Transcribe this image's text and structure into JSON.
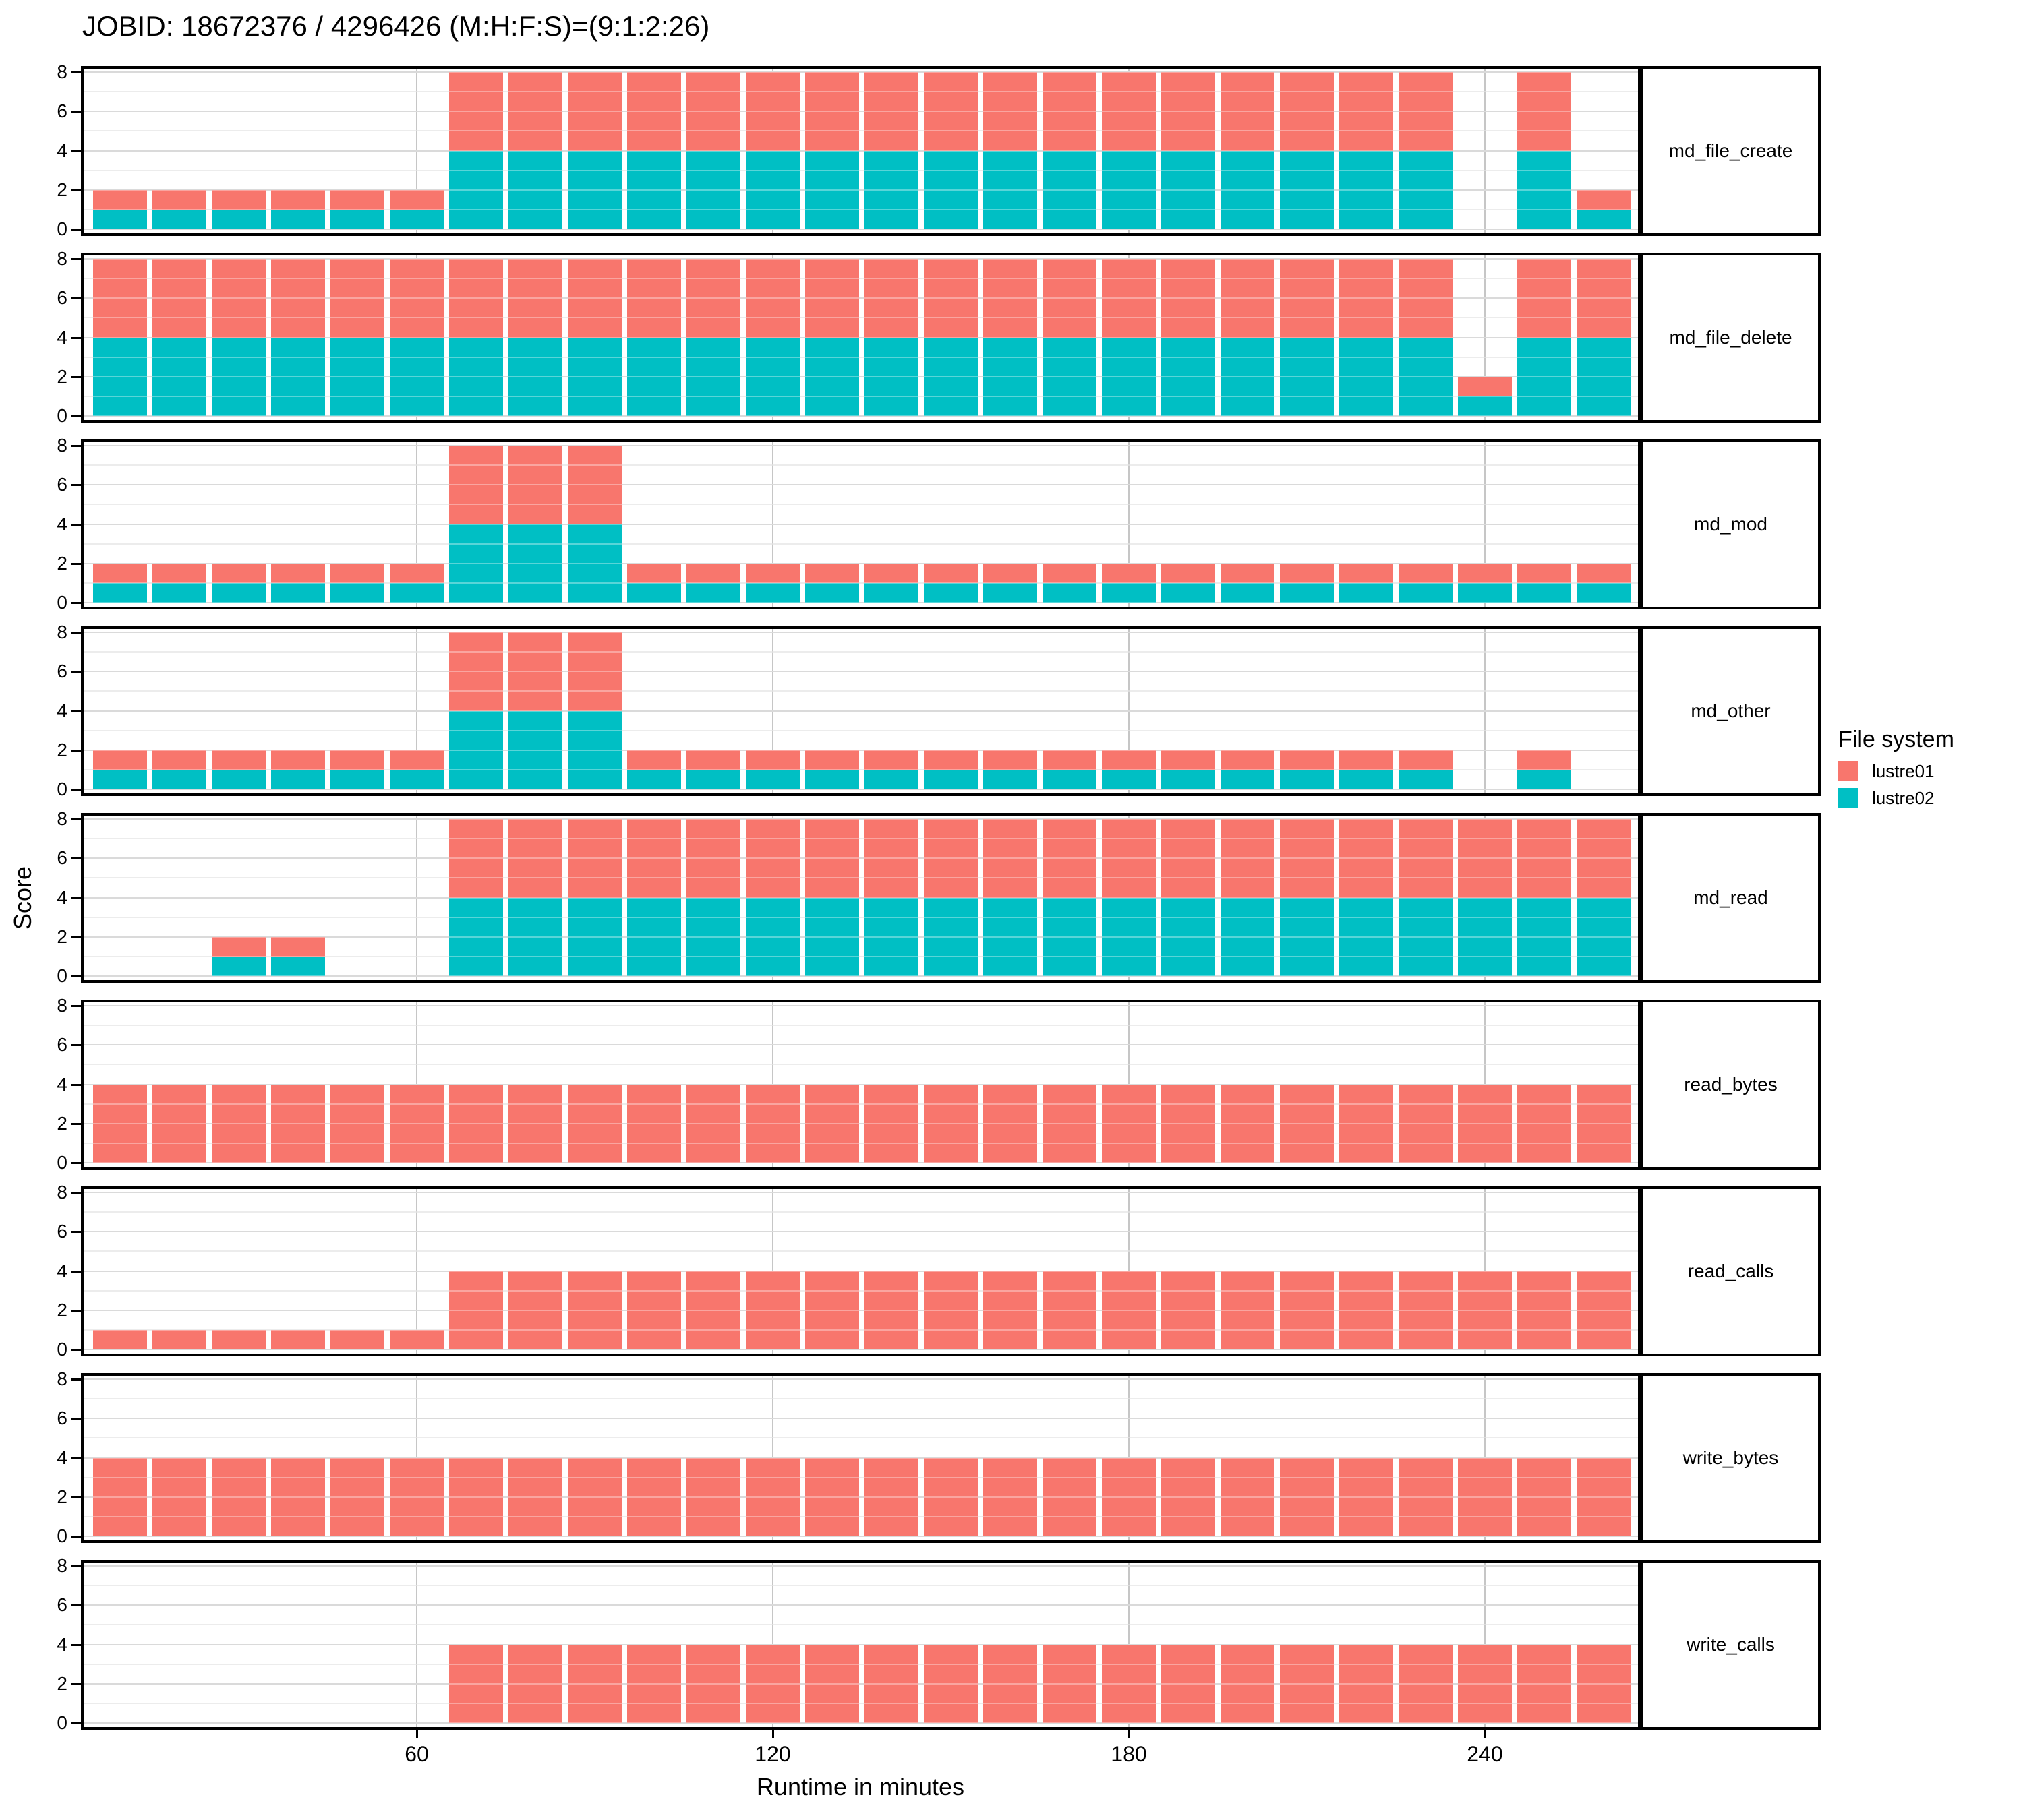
{
  "title": "JOBID: 18672376 / 4296426 (M:H:F:S)=(9:1:2:26)",
  "y_axis": {
    "label": "Score",
    "ticks": [
      0,
      2,
      4,
      6,
      8
    ],
    "minor_ticks": [
      1,
      3,
      5,
      7
    ],
    "limits": [
      0,
      8
    ]
  },
  "x_axis": {
    "label": "Runtime in minutes",
    "ticks": [
      60,
      120,
      180,
      240
    ]
  },
  "legend": {
    "title": "File system",
    "items": [
      {
        "label": "lustre01",
        "color": "#F8766D"
      },
      {
        "label": "lustre02",
        "color": "#00BFC4"
      }
    ]
  },
  "colors": {
    "lustre01": "#F8766D",
    "lustre02": "#00BFC4"
  },
  "chart_data": {
    "type": "bar",
    "stacked": true,
    "title": "JOBID: 18672376 / 4296426 (M:H:F:S)=(9:1:2:26)",
    "xlabel": "Runtime in minutes",
    "ylabel": "Score",
    "ylim": [
      0,
      8
    ],
    "bar_width_minutes": 9,
    "grid": true,
    "legend_position": "right",
    "stack_order_bottom_to_top": [
      "lustre02",
      "lustre01"
    ],
    "x_centers_minutes": [
      10,
      20,
      30,
      40,
      50,
      60,
      70,
      80,
      90,
      100,
      110,
      120,
      130,
      140,
      150,
      160,
      170,
      180,
      190,
      200,
      210,
      220,
      230,
      240,
      250,
      260
    ],
    "facets": [
      {
        "label": "md_file_create",
        "series": {
          "lustre01": [
            1,
            1,
            1,
            1,
            1,
            1,
            4,
            4,
            4,
            4,
            4,
            4,
            4,
            4,
            4,
            4,
            4,
            4,
            4,
            4,
            4,
            4,
            4,
            0,
            4,
            1
          ],
          "lustre02": [
            1,
            1,
            1,
            1,
            1,
            1,
            4,
            4,
            4,
            4,
            4,
            4,
            4,
            4,
            4,
            4,
            4,
            4,
            4,
            4,
            4,
            4,
            4,
            0,
            4,
            1
          ]
        }
      },
      {
        "label": "md_file_delete",
        "series": {
          "lustre01": [
            4,
            4,
            4,
            4,
            4,
            4,
            4,
            4,
            4,
            4,
            4,
            4,
            4,
            4,
            4,
            4,
            4,
            4,
            4,
            4,
            4,
            4,
            4,
            1,
            4,
            4
          ],
          "lustre02": [
            4,
            4,
            4,
            4,
            4,
            4,
            4,
            4,
            4,
            4,
            4,
            4,
            4,
            4,
            4,
            4,
            4,
            4,
            4,
            4,
            4,
            4,
            4,
            1,
            4,
            4
          ]
        }
      },
      {
        "label": "md_mod",
        "series": {
          "lustre01": [
            1,
            1,
            1,
            1,
            1,
            1,
            4,
            4,
            4,
            1,
            1,
            1,
            1,
            1,
            1,
            1,
            1,
            1,
            1,
            1,
            1,
            1,
            1,
            1,
            1,
            1
          ],
          "lustre02": [
            1,
            1,
            1,
            1,
            1,
            1,
            4,
            4,
            4,
            1,
            1,
            1,
            1,
            1,
            1,
            1,
            1,
            1,
            1,
            1,
            1,
            1,
            1,
            1,
            1,
            1
          ]
        }
      },
      {
        "label": "md_other",
        "series": {
          "lustre01": [
            1,
            1,
            1,
            1,
            1,
            1,
            4,
            4,
            4,
            1,
            1,
            1,
            1,
            1,
            1,
            1,
            1,
            1,
            1,
            1,
            1,
            1,
            1,
            0,
            1,
            0
          ],
          "lustre02": [
            1,
            1,
            1,
            1,
            1,
            1,
            4,
            4,
            4,
            1,
            1,
            1,
            1,
            1,
            1,
            1,
            1,
            1,
            1,
            1,
            1,
            1,
            1,
            0,
            1,
            0
          ]
        }
      },
      {
        "label": "md_read",
        "series": {
          "lustre01": [
            0,
            0,
            1,
            1,
            0,
            0,
            4,
            4,
            4,
            4,
            4,
            4,
            4,
            4,
            4,
            4,
            4,
            4,
            4,
            4,
            4,
            4,
            4,
            4,
            4,
            4
          ],
          "lustre02": [
            0,
            0,
            1,
            1,
            0,
            0,
            4,
            4,
            4,
            4,
            4,
            4,
            4,
            4,
            4,
            4,
            4,
            4,
            4,
            4,
            4,
            4,
            4,
            4,
            4,
            4
          ]
        }
      },
      {
        "label": "read_bytes",
        "series": {
          "lustre01": [
            4,
            4,
            4,
            4,
            4,
            4,
            4,
            4,
            4,
            4,
            4,
            4,
            4,
            4,
            4,
            4,
            4,
            4,
            4,
            4,
            4,
            4,
            4,
            4,
            4,
            4
          ],
          "lustre02": [
            0,
            0,
            0,
            0,
            0,
            0,
            0,
            0,
            0,
            0,
            0,
            0,
            0,
            0,
            0,
            0,
            0,
            0,
            0,
            0,
            0,
            0,
            0,
            0,
            0,
            0
          ]
        }
      },
      {
        "label": "read_calls",
        "series": {
          "lustre01": [
            1,
            1,
            1,
            1,
            1,
            1,
            4,
            4,
            4,
            4,
            4,
            4,
            4,
            4,
            4,
            4,
            4,
            4,
            4,
            4,
            4,
            4,
            4,
            4,
            4,
            4
          ],
          "lustre02": [
            0,
            0,
            0,
            0,
            0,
            0,
            0,
            0,
            0,
            0,
            0,
            0,
            0,
            0,
            0,
            0,
            0,
            0,
            0,
            0,
            0,
            0,
            0,
            0,
            0,
            0
          ]
        }
      },
      {
        "label": "write_bytes",
        "series": {
          "lustre01": [
            4,
            4,
            4,
            4,
            4,
            4,
            4,
            4,
            4,
            4,
            4,
            4,
            4,
            4,
            4,
            4,
            4,
            4,
            4,
            4,
            4,
            4,
            4,
            4,
            4,
            4
          ],
          "lustre02": [
            0,
            0,
            0,
            0,
            0,
            0,
            0,
            0,
            0,
            0,
            0,
            0,
            0,
            0,
            0,
            0,
            0,
            0,
            0,
            0,
            0,
            0,
            0,
            0,
            0,
            0
          ]
        }
      },
      {
        "label": "write_calls",
        "series": {
          "lustre01": [
            0,
            0,
            0,
            0,
            0,
            0,
            4,
            4,
            4,
            4,
            4,
            4,
            4,
            4,
            4,
            4,
            4,
            4,
            4,
            4,
            4,
            4,
            4,
            4,
            4,
            4
          ],
          "lustre02": [
            0,
            0,
            0,
            0,
            0,
            0,
            0,
            0,
            0,
            0,
            0,
            0,
            0,
            0,
            0,
            0,
            0,
            0,
            0,
            0,
            0,
            0,
            0,
            0,
            0,
            0
          ]
        }
      }
    ]
  }
}
